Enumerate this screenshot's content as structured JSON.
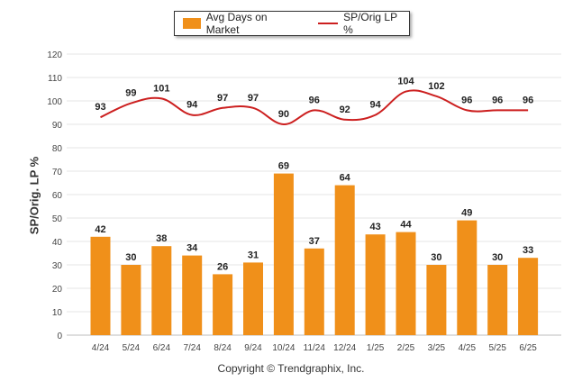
{
  "legend": {
    "bars_label": "Avg Days on Market",
    "line_label": "SP/Orig LP %"
  },
  "colors": {
    "bars": "#f0901a",
    "line": "#cc1f1f",
    "grid": "#e6e6e6"
  },
  "copyright": "Copyright © Trendgraphix, Inc.",
  "chart_data": {
    "type": "bar",
    "categories": [
      "4/24",
      "5/24",
      "6/24",
      "7/24",
      "8/24",
      "9/24",
      "10/24",
      "11/24",
      "12/24",
      "1/25",
      "2/25",
      "3/25",
      "4/25",
      "5/25",
      "6/25"
    ],
    "series": [
      {
        "name": "Avg Days on Market",
        "type": "bar",
        "values": [
          42,
          30,
          38,
          34,
          26,
          31,
          69,
          37,
          64,
          43,
          44,
          30,
          49,
          30,
          33
        ]
      },
      {
        "name": "SP/Orig LP %",
        "type": "line",
        "values": [
          93,
          99,
          101,
          94,
          97,
          97,
          90,
          96,
          92,
          94,
          104,
          102,
          96,
          96,
          96
        ]
      }
    ],
    "ylabel": "SP/Orig. LP %",
    "xlabel": "",
    "ylim": [
      0,
      120
    ],
    "yticks": [
      0,
      10,
      20,
      30,
      40,
      50,
      60,
      70,
      80,
      90,
      100,
      110,
      120
    ],
    "grid": true,
    "legend_position": "top"
  }
}
